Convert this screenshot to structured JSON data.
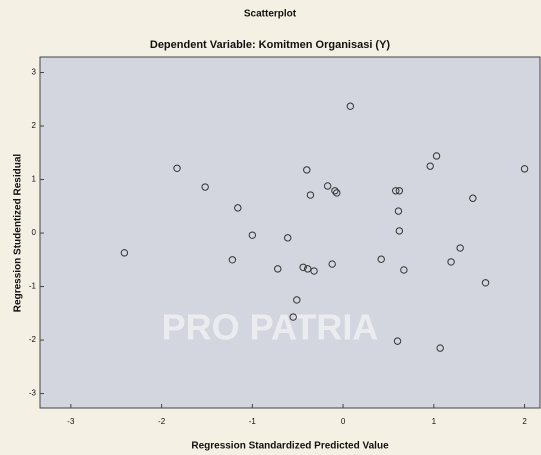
{
  "chart_data": {
    "type": "scatter",
    "title": "Scatterplot",
    "subtitle": "Dependent Variable: Komitmen Organisasi (Y)",
    "x_label": "Regression Standardized Predicted Value",
    "y_label": "Regression Studentized Residual",
    "watermark": "PRO PATRIA",
    "x": [
      -2.41,
      -1.83,
      -1.52,
      -1.22,
      -1.16,
      -1.0,
      -0.72,
      -0.61,
      -0.55,
      -0.51,
      -0.44,
      -0.4,
      -0.39,
      -0.36,
      -0.32,
      -0.17,
      -0.12,
      -0.09,
      -0.07,
      0.08,
      0.42,
      0.58,
      0.62,
      0.61,
      0.62,
      0.6,
      0.67,
      0.96,
      1.03,
      1.07,
      1.19,
      1.29,
      1.43,
      1.57,
      2.0
    ],
    "values": [
      -0.37,
      1.21,
      0.86,
      -0.5,
      0.47,
      -0.04,
      -0.67,
      -0.09,
      -1.57,
      -1.25,
      -0.64,
      1.18,
      -0.67,
      0.71,
      -0.71,
      0.88,
      -0.58,
      0.79,
      0.75,
      2.37,
      -0.49,
      0.79,
      0.79,
      0.41,
      0.04,
      -2.02,
      -0.69,
      1.25,
      1.44,
      -2.15,
      -0.54,
      -0.28,
      0.65,
      -0.93,
      1.2
    ],
    "color": "#333333",
    "xlim": [
      -3.34,
      2.17
    ],
    "xticks": [
      -3,
      -2,
      -1,
      0,
      1,
      2
    ],
    "ylim": [
      -3.27,
      3.29
    ],
    "yticks": [
      3,
      2,
      1,
      0,
      -1,
      -2,
      -3
    ]
  }
}
